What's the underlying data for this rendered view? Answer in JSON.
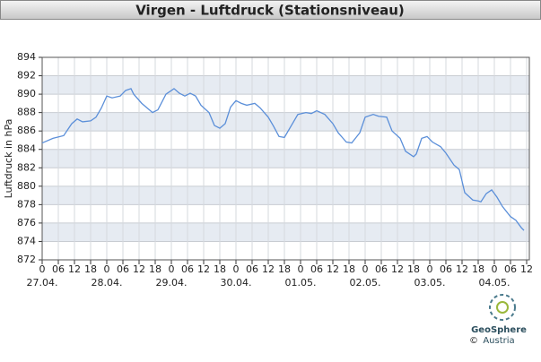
{
  "chart_data": {
    "type": "line",
    "title": "Virgen - Luftdruck (Stationsniveau)",
    "y_label": "Luftdruck in hPa",
    "logo": {
      "name": "GeoSphere",
      "sub": "Austria",
      "copyright": "©"
    },
    "x": [
      0,
      4,
      8,
      11,
      13,
      15,
      18,
      20,
      22,
      24,
      26,
      29,
      31,
      33,
      34,
      37,
      39,
      41,
      43,
      46,
      49,
      51,
      53,
      55,
      57,
      59,
      62,
      64,
      66,
      68,
      70,
      72,
      74,
      76,
      79,
      81,
      84,
      86,
      88,
      90,
      93,
      95,
      98,
      100,
      102,
      105,
      108,
      110,
      113,
      115,
      118,
      120,
      123,
      125,
      128,
      130,
      133,
      135,
      138,
      139,
      141,
      143,
      145,
      148,
      150,
      153,
      155,
      157,
      160,
      162,
      163,
      165,
      167,
      169,
      171,
      174,
      176,
      178,
      179
    ],
    "series": [
      {
        "name": "Luftdruck",
        "color": "#5b8fd9",
        "values": [
          884.7,
          885.2,
          885.5,
          886.8,
          887.3,
          887.0,
          887.1,
          887.5,
          888.5,
          889.8,
          889.6,
          889.8,
          890.4,
          890.6,
          890.0,
          889.0,
          888.5,
          888.0,
          888.3,
          890.0,
          890.6,
          890.1,
          889.8,
          890.1,
          889.8,
          888.8,
          888.0,
          886.6,
          886.3,
          886.8,
          888.6,
          889.3,
          889.0,
          888.8,
          889.0,
          888.5,
          887.5,
          886.5,
          885.4,
          885.3,
          886.8,
          887.8,
          888.0,
          887.9,
          888.2,
          887.8,
          886.8,
          885.8,
          884.8,
          884.7,
          885.8,
          887.5,
          887.8,
          887.6,
          887.5,
          886.0,
          885.2,
          883.8,
          883.2,
          883.5,
          885.2,
          885.4,
          884.8,
          884.3,
          883.6,
          882.3,
          881.8,
          879.3,
          878.5,
          878.4,
          878.3,
          879.2,
          879.6,
          878.8,
          877.8,
          876.7,
          876.3,
          875.5,
          875.2
        ]
      }
    ],
    "xlim": [
      0,
      181
    ],
    "ylim": [
      872,
      894
    ],
    "yticks": [
      872,
      874,
      876,
      878,
      880,
      882,
      884,
      886,
      888,
      890,
      892,
      894
    ],
    "xticks": [
      {
        "value": 0,
        "label": "0"
      },
      {
        "value": 6,
        "label": "06"
      },
      {
        "value": 12,
        "label": "12"
      },
      {
        "value": 18,
        "label": "18"
      },
      {
        "value": 24,
        "label": "0"
      },
      {
        "value": 30,
        "label": "06"
      },
      {
        "value": 36,
        "label": "12"
      },
      {
        "value": 42,
        "label": "18"
      },
      {
        "value": 48,
        "label": "0"
      },
      {
        "value": 54,
        "label": "06"
      },
      {
        "value": 60,
        "label": "12"
      },
      {
        "value": 66,
        "label": "18"
      },
      {
        "value": 72,
        "label": "0"
      },
      {
        "value": 78,
        "label": "06"
      },
      {
        "value": 84,
        "label": "12"
      },
      {
        "value": 90,
        "label": "18"
      },
      {
        "value": 96,
        "label": "0"
      },
      {
        "value": 102,
        "label": "06"
      },
      {
        "value": 108,
        "label": "12"
      },
      {
        "value": 114,
        "label": "18"
      },
      {
        "value": 120,
        "label": "0"
      },
      {
        "value": 126,
        "label": "06"
      },
      {
        "value": 132,
        "label": "12"
      },
      {
        "value": 138,
        "label": "18"
      },
      {
        "value": 144,
        "label": "0"
      },
      {
        "value": 150,
        "label": "06"
      },
      {
        "value": 156,
        "label": "12"
      },
      {
        "value": 162,
        "label": "18"
      },
      {
        "value": 168,
        "label": "0"
      },
      {
        "value": 174,
        "label": "06"
      },
      {
        "value": 180,
        "label": "12"
      }
    ],
    "date_labels": [
      {
        "value": 0,
        "label": "27.04."
      },
      {
        "value": 24,
        "label": "28.04."
      },
      {
        "value": 48,
        "label": "29.04."
      },
      {
        "value": 72,
        "label": "30.04."
      },
      {
        "value": 96,
        "label": "01.05."
      },
      {
        "value": 120,
        "label": "02.05."
      },
      {
        "value": 144,
        "label": "03.05."
      },
      {
        "value": 168,
        "label": "04.05."
      }
    ],
    "grid": true
  }
}
